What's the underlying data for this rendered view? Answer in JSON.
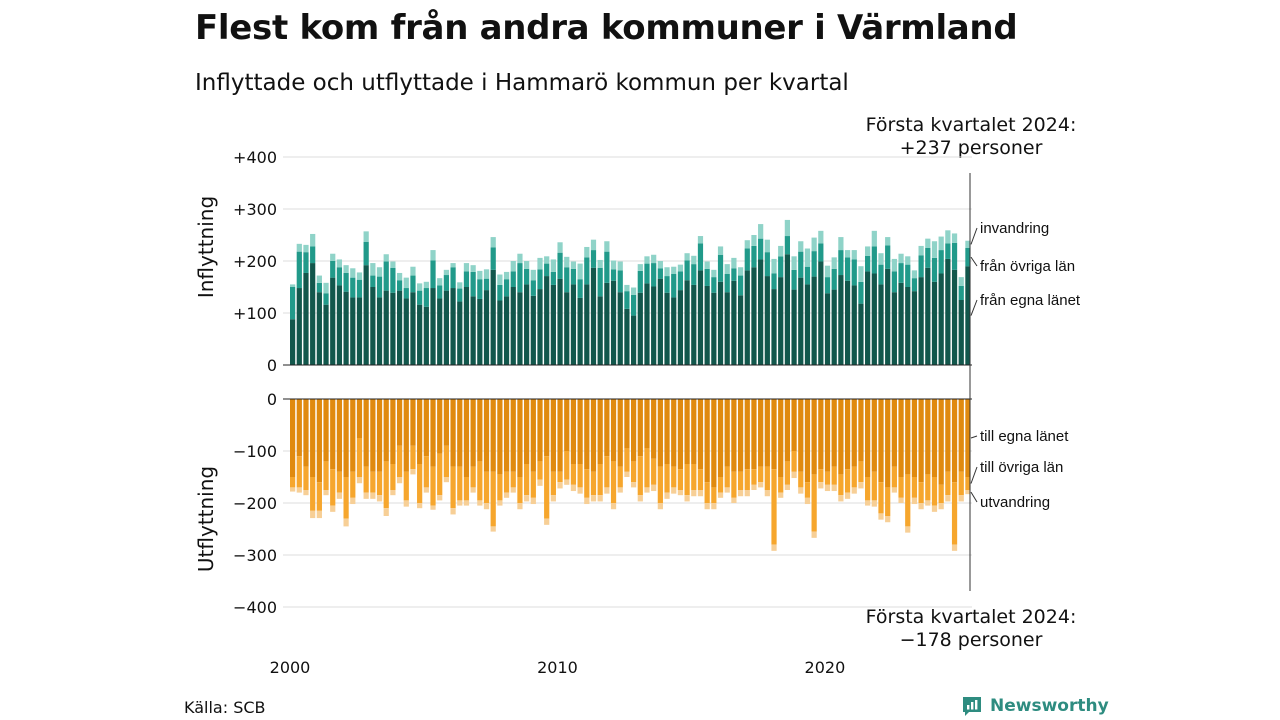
{
  "title": "Flest kom från andra kommuner i Värmland",
  "subtitle": "Inflyttade och utflyttade i Hammarö kommun per kvartal",
  "source": "Källa: SCB",
  "brand": "Newsworthy",
  "callouts": {
    "top_label": "Första kvartalet 2024:",
    "top_value": "+237 personer",
    "bottom_label": "Första kvartalet 2024:",
    "bottom_value": "−178 personer"
  },
  "colors": {
    "in_same_county": "#12574c",
    "in_other_counties": "#219a8a",
    "in_immigration": "#8fd3c8",
    "out_same_county": "#e08a0f",
    "out_other_counties": "#f6a62d",
    "out_emigration": "#f7cf96",
    "brand": "#2e8c80"
  },
  "chart_data": [
    {
      "type": "bar",
      "stacked": true,
      "ylabel": "Inflyttning",
      "ylim": [
        0,
        400
      ],
      "yticks": [
        {
          "value": 400,
          "label": "+400"
        },
        {
          "value": 300,
          "label": "+300"
        },
        {
          "value": 200,
          "label": "+200"
        },
        {
          "value": 100,
          "label": "+100"
        },
        {
          "value": 0,
          "label": "0"
        }
      ],
      "x_start": "2000 Q1",
      "xticks": [
        {
          "index": 0,
          "label": "2000"
        },
        {
          "index": 40,
          "label": "2010"
        },
        {
          "index": 80,
          "label": "2020"
        }
      ],
      "series": [
        {
          "name": "från egna länet",
          "values": [
            88,
            148,
            177,
            196,
            140,
            116,
            168,
            153,
            141,
            130,
            130,
            192,
            150,
            130,
            143,
            139,
            143,
            128,
            140,
            116,
            112,
            148,
            128,
            143,
            148,
            122,
            150,
            132,
            127,
            144,
            183,
            124,
            132,
            150,
            140,
            155,
            133,
            146,
            171,
            154,
            166,
            140,
            155,
            129,
            155,
            187,
            132,
            158,
            162,
            140,
            108,
            95,
            139,
            157,
            151,
            166,
            139,
            130,
            144,
            163,
            154,
            182,
            152,
            139,
            160,
            140,
            162,
            134,
            182,
            188,
            203,
            171,
            146,
            169,
            213,
            145,
            168,
            155,
            170,
            199,
            138,
            145,
            173,
            162,
            153,
            118,
            180,
            176,
            155,
            185,
            140,
            158,
            150,
            142,
            169,
            187,
            160,
            176,
            204,
            183,
            125,
            190
          ]
        },
        {
          "name": "från övriga län",
          "values": [
            62,
            70,
            40,
            32,
            18,
            22,
            32,
            35,
            36,
            38,
            34,
            45,
            22,
            40,
            56,
            48,
            20,
            20,
            32,
            27,
            36,
            53,
            25,
            30,
            40,
            25,
            30,
            47,
            38,
            22,
            43,
            30,
            33,
            30,
            56,
            30,
            30,
            38,
            24,
            25,
            50,
            48,
            30,
            36,
            52,
            34,
            55,
            60,
            22,
            42,
            34,
            40,
            42,
            38,
            45,
            20,
            32,
            45,
            36,
            38,
            40,
            52,
            33,
            30,
            52,
            35,
            24,
            38,
            42,
            41,
            40,
            46,
            30,
            40,
            35,
            38,
            50,
            34,
            49,
            35,
            31,
            40,
            48,
            45,
            50,
            42,
            30,
            52,
            38,
            45,
            40,
            38,
            43,
            25,
            42,
            38,
            46,
            45,
            30,
            52,
            27,
            35
          ]
        },
        {
          "name": "invandring",
          "values": [
            5,
            15,
            14,
            24,
            14,
            20,
            14,
            15,
            15,
            18,
            14,
            20,
            24,
            18,
            14,
            12,
            14,
            20,
            17,
            14,
            12,
            20,
            14,
            10,
            8,
            12,
            16,
            13,
            16,
            18,
            20,
            20,
            14,
            20,
            18,
            15,
            20,
            22,
            14,
            24,
            20,
            20,
            14,
            30,
            20,
            20,
            15,
            20,
            17,
            17,
            12,
            14,
            13,
            14,
            16,
            14,
            17,
            14,
            13,
            14,
            16,
            14,
            14,
            14,
            16,
            19,
            20,
            16,
            16,
            21,
            28,
            24,
            28,
            20,
            31,
            26,
            20,
            35,
            26,
            24,
            22,
            22,
            25,
            14,
            18,
            30,
            18,
            30,
            22,
            16,
            24,
            18,
            16,
            15,
            18,
            18,
            32,
            26,
            25,
            18,
            17,
            14
          ]
        }
      ]
    },
    {
      "type": "bar",
      "stacked": true,
      "ylabel": "Utflyttning",
      "ylim": [
        -400,
        0
      ],
      "yticks": [
        {
          "value": 0,
          "label": "0"
        },
        {
          "value": -100,
          "label": "−100"
        },
        {
          "value": -200,
          "label": "−200"
        },
        {
          "value": -300,
          "label": "−300"
        },
        {
          "value": -400,
          "label": "−400"
        }
      ],
      "x_start": "2000 Q1",
      "series": [
        {
          "name": "till egna länet",
          "values": [
            -150,
            -110,
            -130,
            -150,
            -160,
            -120,
            -135,
            -140,
            -150,
            -140,
            -75,
            -130,
            -140,
            -140,
            -120,
            -125,
            -90,
            -140,
            -90,
            -125,
            -110,
            -130,
            -105,
            -90,
            -130,
            -130,
            -150,
            -130,
            -120,
            -140,
            -140,
            -145,
            -140,
            -140,
            -150,
            -125,
            -140,
            -120,
            -110,
            -140,
            -140,
            -100,
            -125,
            -125,
            -135,
            -140,
            -125,
            -110,
            -120,
            -130,
            -95,
            -120,
            -110,
            -95,
            -115,
            -130,
            -125,
            -130,
            -135,
            -125,
            -125,
            -135,
            -160,
            -170,
            -150,
            -130,
            -140,
            -140,
            -135,
            -135,
            -130,
            -130,
            -135,
            -150,
            -120,
            -100,
            -140,
            -160,
            -145,
            -135,
            -140,
            -130,
            -145,
            -135,
            -130,
            -120,
            -150,
            -140,
            -160,
            -170,
            -130,
            -150,
            -145,
            -150,
            -160,
            -145,
            -150,
            -165,
            -140,
            -160,
            -140,
            -150
          ]
        },
        {
          "name": "till övriga län",
          "values": [
            -20,
            -60,
            -45,
            -65,
            -55,
            -55,
            -70,
            -40,
            -80,
            -50,
            -75,
            -50,
            -40,
            -45,
            -90,
            -50,
            -60,
            -55,
            -45,
            -75,
            -60,
            -75,
            -80,
            -60,
            -80,
            -65,
            -45,
            -40,
            -75,
            -60,
            -105,
            -50,
            -40,
            -30,
            -50,
            -60,
            -50,
            -35,
            -120,
            -45,
            -20,
            -55,
            -40,
            -45,
            -55,
            -45,
            -60,
            -60,
            -80,
            -40,
            -45,
            -40,
            -75,
            -75,
            -50,
            -70,
            -55,
            -40,
            -40,
            -60,
            -50,
            -40,
            -40,
            -30,
            -30,
            -40,
            -50,
            -35,
            -40,
            -30,
            -30,
            -45,
            -145,
            -30,
            -45,
            -40,
            -30,
            -30,
            -110,
            -25,
            -25,
            -35,
            -40,
            -45,
            -40,
            -40,
            -45,
            -55,
            -60,
            -55,
            -40,
            -40,
            -100,
            -40,
            -40,
            -50,
            -55,
            -35,
            -45,
            -120,
            -45,
            -25
          ]
        },
        {
          "name": "utvandring",
          "values": [
            -8,
            -10,
            -10,
            -14,
            -14,
            -10,
            -12,
            -12,
            -15,
            -12,
            -12,
            -12,
            -12,
            -12,
            -15,
            -10,
            -12,
            -12,
            -10,
            -10,
            -10,
            -8,
            -10,
            -10,
            -12,
            -10,
            -10,
            -10,
            -10,
            -12,
            -10,
            -10,
            -10,
            -10,
            -12,
            -12,
            -12,
            -12,
            -12,
            -12,
            -12,
            -10,
            -12,
            -12,
            -12,
            -12,
            -12,
            -12,
            -12,
            -10,
            -10,
            -10,
            -12,
            -10,
            -12,
            -12,
            -12,
            -12,
            -10,
            -12,
            -12,
            -12,
            -12,
            -12,
            -10,
            -10,
            -10,
            -12,
            -12,
            -10,
            -10,
            -12,
            -12,
            -10,
            -10,
            -12,
            -12,
            -12,
            -12,
            -12,
            -12,
            -12,
            -12,
            -12,
            -12,
            -12,
            -10,
            -12,
            -12,
            -12,
            -10,
            -10,
            -12,
            -12,
            -12,
            -10,
            -12,
            -12,
            -12,
            -12,
            -12,
            -8
          ]
        }
      ]
    }
  ]
}
